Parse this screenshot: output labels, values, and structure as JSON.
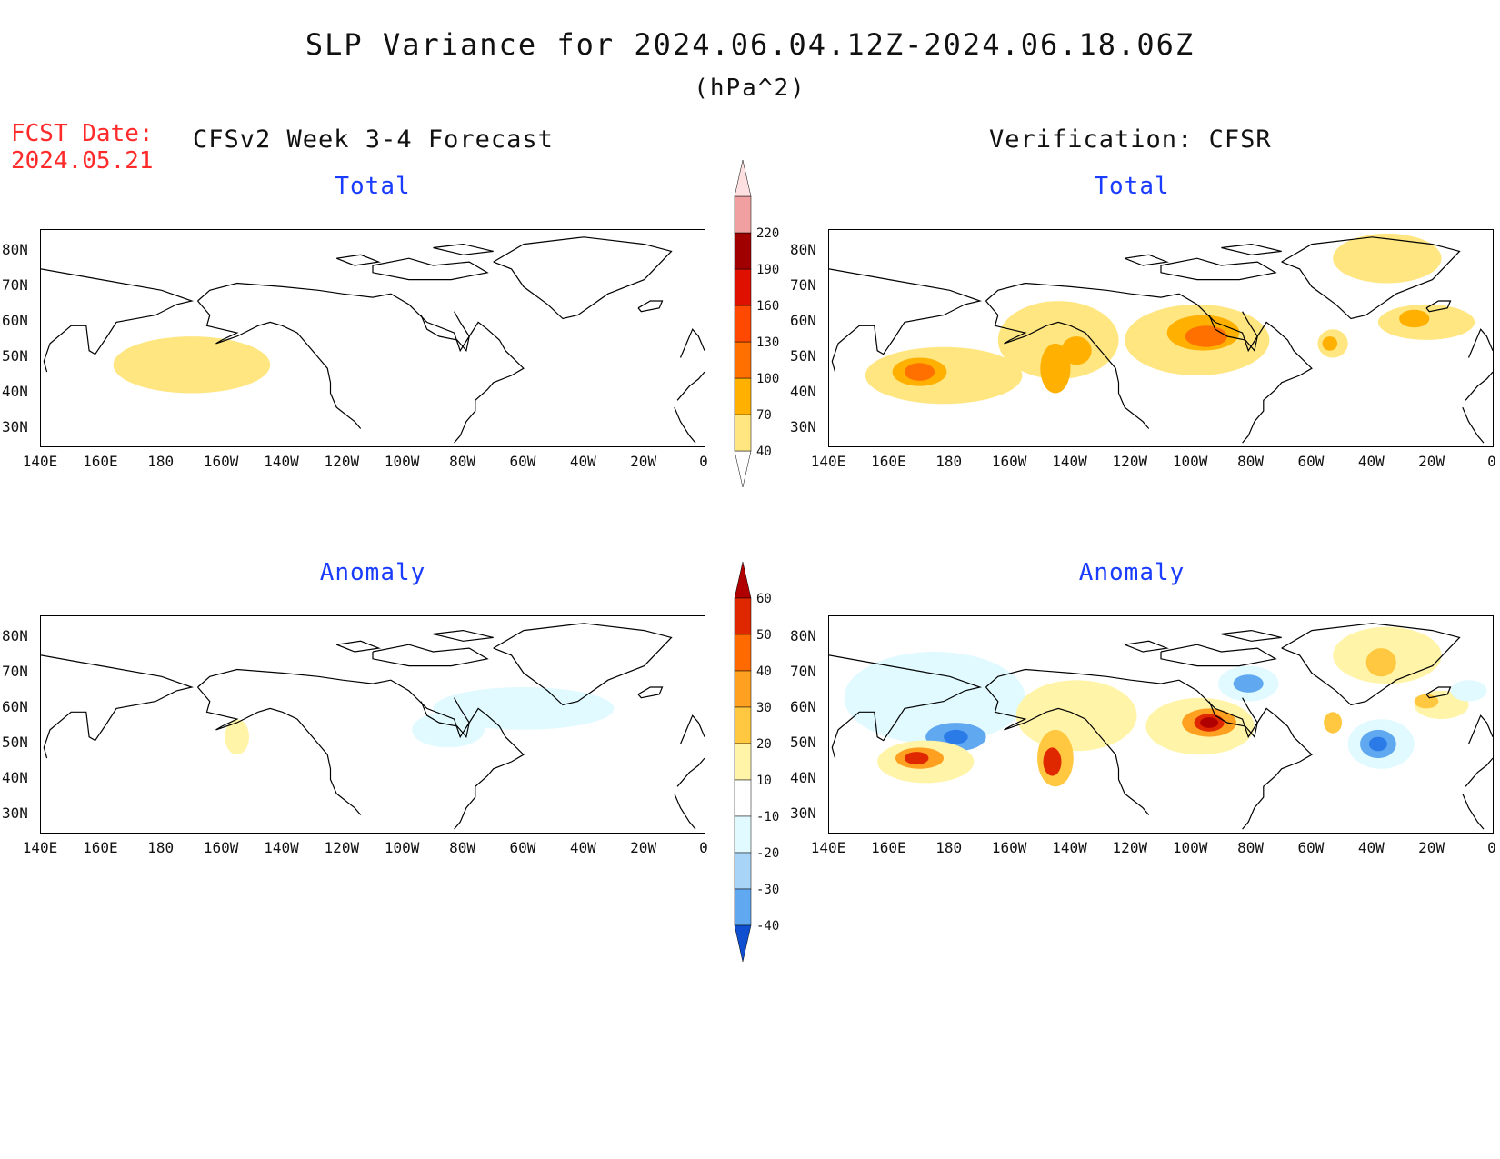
{
  "header": {
    "title": "SLP Variance for 2024.06.04.12Z-2024.06.18.06Z",
    "units": "(hPa^2)",
    "fcst_date_label": "FCST Date:",
    "fcst_date_value": "2024.05.21",
    "left_heading": "CFSv2 Week 3-4 Forecast",
    "right_heading": "Verification: CFSR"
  },
  "panels": {
    "total_label": "Total",
    "anomaly_label": "Anomaly"
  },
  "axes": {
    "lat_labels": [
      "80N",
      "70N",
      "60N",
      "50N",
      "40N",
      "30N"
    ],
    "lon_labels": [
      "140E",
      "160E",
      "180",
      "160W",
      "140W",
      "120W",
      "100W",
      "80W",
      "60W",
      "40W",
      "20W",
      "0"
    ]
  },
  "colorbars": {
    "total": {
      "levels": [
        "40",
        "70",
        "100",
        "130",
        "160",
        "190",
        "220"
      ],
      "colors": [
        "#ffe680",
        "#ffb000",
        "#ff7000",
        "#ff4800",
        "#e01000",
        "#a00000",
        "#f0a0a0",
        "#ffe0e0"
      ]
    },
    "anomaly": {
      "levels": [
        "-40",
        "-30",
        "-20",
        "-10",
        "10",
        "20",
        "30",
        "40",
        "50",
        "60"
      ],
      "colors": [
        "#1050d0",
        "#2a7ae8",
        "#60a8f0",
        "#a8d4f8",
        "#e0faff",
        "#ffffff",
        "#fff4a8",
        "#ffc840",
        "#ffa020",
        "#ff6a00",
        "#e02800",
        "#b00000"
      ]
    }
  },
  "chart_data": {
    "type": "heatmap",
    "variable": "SLP Variance",
    "units": "hPa^2",
    "lat_range": [
      25,
      86
    ],
    "lon_range": [
      140,
      360
    ],
    "maps": [
      {
        "panel": "CFSv2 Week 3-4 Forecast - Total",
        "blobs": [
          {
            "lon": 190,
            "lat": 48,
            "rx": 26,
            "ry": 8,
            "value": 40
          }
        ]
      },
      {
        "panel": "Verification: CFSR - Total",
        "blobs": [
          {
            "lon": 178,
            "lat": 45,
            "rx": 26,
            "ry": 8,
            "value": 40
          },
          {
            "lon": 170,
            "lat": 46,
            "rx": 9,
            "ry": 4,
            "value": 70
          },
          {
            "lon": 170,
            "lat": 46,
            "rx": 5,
            "ry": 2.5,
            "value": 100
          },
          {
            "lon": 216,
            "lat": 55,
            "rx": 20,
            "ry": 11,
            "value": 40
          },
          {
            "lon": 215,
            "lat": 47,
            "rx": 5,
            "ry": 7,
            "value": 70
          },
          {
            "lon": 222,
            "lat": 52,
            "rx": 5,
            "ry": 4,
            "value": 70
          },
          {
            "lon": 262,
            "lat": 55,
            "rx": 24,
            "ry": 10,
            "value": 40
          },
          {
            "lon": 264,
            "lat": 57,
            "rx": 12,
            "ry": 5,
            "value": 70
          },
          {
            "lon": 265,
            "lat": 56,
            "rx": 7,
            "ry": 3,
            "value": 100
          },
          {
            "lon": 325,
            "lat": 78,
            "rx": 18,
            "ry": 7,
            "value": 40
          },
          {
            "lon": 338,
            "lat": 60,
            "rx": 16,
            "ry": 5,
            "value": 40
          },
          {
            "lon": 334,
            "lat": 61,
            "rx": 5,
            "ry": 2.5,
            "value": 70
          },
          {
            "lon": 307,
            "lat": 54,
            "rx": 5,
            "ry": 4,
            "value": 40
          },
          {
            "lon": 306,
            "lat": 54,
            "rx": 2.5,
            "ry": 2,
            "value": 70
          }
        ]
      },
      {
        "panel": "CFSv2 Week 3-4 Forecast - Anomaly",
        "blobs": [
          {
            "lon": 205,
            "lat": 52,
            "rx": 4,
            "ry": 5,
            "value": 10
          },
          {
            "lon": 300,
            "lat": 60,
            "rx": 30,
            "ry": 6,
            "value": -10
          },
          {
            "lon": 275,
            "lat": 54,
            "rx": 12,
            "ry": 5,
            "value": -10
          }
        ]
      },
      {
        "panel": "Verification: CFSR - Anomaly",
        "blobs": [
          {
            "lon": 175,
            "lat": 63,
            "rx": 30,
            "ry": 13,
            "value": -10
          },
          {
            "lon": 182,
            "lat": 52,
            "rx": 10,
            "ry": 4,
            "value": -20
          },
          {
            "lon": 182,
            "lat": 52,
            "rx": 4,
            "ry": 2,
            "value": -30
          },
          {
            "lon": 172,
            "lat": 45,
            "rx": 16,
            "ry": 6,
            "value": 10
          },
          {
            "lon": 170,
            "lat": 46,
            "rx": 8,
            "ry": 3,
            "value": 30
          },
          {
            "lon": 169,
            "lat": 46,
            "rx": 4,
            "ry": 1.8,
            "value": 50
          },
          {
            "lon": 222,
            "lat": 58,
            "rx": 20,
            "ry": 10,
            "value": 10
          },
          {
            "lon": 215,
            "lat": 46,
            "rx": 6,
            "ry": 8,
            "value": 20
          },
          {
            "lon": 214,
            "lat": 45,
            "rx": 3,
            "ry": 4,
            "value": 50
          },
          {
            "lon": 263,
            "lat": 55,
            "rx": 18,
            "ry": 8,
            "value": 10
          },
          {
            "lon": 266,
            "lat": 56,
            "rx": 9,
            "ry": 4,
            "value": 30
          },
          {
            "lon": 266,
            "lat": 56,
            "rx": 5,
            "ry": 2.5,
            "value": 50
          },
          {
            "lon": 266,
            "lat": 56,
            "rx": 3,
            "ry": 1.5,
            "value": 60
          },
          {
            "lon": 279,
            "lat": 67,
            "rx": 10,
            "ry": 5,
            "value": -10
          },
          {
            "lon": 279,
            "lat": 67,
            "rx": 5,
            "ry": 2.5,
            "value": -20
          },
          {
            "lon": 323,
            "lat": 50,
            "rx": 11,
            "ry": 7,
            "value": -10
          },
          {
            "lon": 322,
            "lat": 50,
            "rx": 6,
            "ry": 4,
            "value": -20
          },
          {
            "lon": 322,
            "lat": 50,
            "rx": 3,
            "ry": 2,
            "value": -30
          },
          {
            "lon": 325,
            "lat": 75,
            "rx": 18,
            "ry": 8,
            "value": 10
          },
          {
            "lon": 323,
            "lat": 73,
            "rx": 5,
            "ry": 4,
            "value": 20
          },
          {
            "lon": 343,
            "lat": 61,
            "rx": 9,
            "ry": 4,
            "value": 10
          },
          {
            "lon": 338,
            "lat": 62,
            "rx": 4,
            "ry": 2,
            "value": 20
          },
          {
            "lon": 307,
            "lat": 56,
            "rx": 3,
            "ry": 3,
            "value": 20
          },
          {
            "lon": 352,
            "lat": 65,
            "rx": 6,
            "ry": 3,
            "value": -10
          }
        ]
      }
    ]
  }
}
